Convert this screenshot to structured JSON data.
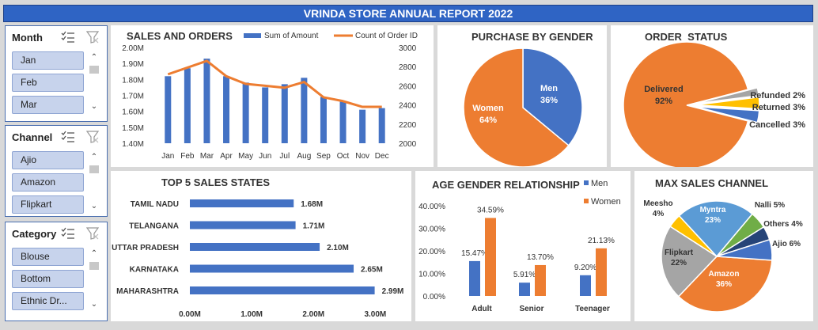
{
  "header": {
    "title": "VRINDA STORE ANNUAL REPORT 2022"
  },
  "slicers": [
    {
      "title": "Month",
      "items": [
        "Jan",
        "Feb",
        "Mar"
      ]
    },
    {
      "title": "Channel",
      "items": [
        "Ajio",
        "Amazon",
        "Flipkart"
      ]
    },
    {
      "title": "Category",
      "items": [
        "Blouse",
        "Bottom",
        "Ethnic Dr..."
      ]
    }
  ],
  "colors": {
    "blue": "#4472c4",
    "orange": "#ed7d31",
    "gray": "#a5a5a5",
    "yellow": "#ffc000",
    "lightblue": "#5b9bd5",
    "green": "#70ad47",
    "navy": "#264478"
  },
  "chart_data": [
    {
      "type": "bar",
      "title": "SALES AND ORDERS",
      "categories": [
        "Jan",
        "Feb",
        "Mar",
        "Apr",
        "May",
        "Jun",
        "Jul",
        "Aug",
        "Sep",
        "Oct",
        "Nov",
        "Dec"
      ],
      "series": [
        {
          "name": "Sum of Amount",
          "values": [
            1.82,
            1.87,
            1.93,
            1.82,
            1.78,
            1.75,
            1.77,
            1.81,
            1.69,
            1.66,
            1.61,
            1.62
          ]
        },
        {
          "name": "Count of Order ID",
          "values": [
            2720,
            2790,
            2860,
            2700,
            2620,
            2600,
            2580,
            2640,
            2480,
            2440,
            2380,
            2380
          ]
        }
      ],
      "y_ticks": [
        "2.00M",
        "1.90M",
        "1.80M",
        "1.70M",
        "1.60M",
        "1.50M",
        "1.40M"
      ],
      "y2_ticks": [
        "3000",
        "2800",
        "2600",
        "2400",
        "2200",
        "2000"
      ],
      "ylim": [
        1.4,
        2.0
      ],
      "y2lim": [
        2000,
        3000
      ]
    },
    {
      "type": "pie",
      "title": "PURCHASE BY GENDER",
      "slices": [
        {
          "label": "Men",
          "pct": "36%",
          "value": 36
        },
        {
          "label": "Women",
          "pct": "64%",
          "value": 64
        }
      ]
    },
    {
      "type": "pie",
      "title": "ORDER  STATUS",
      "slices": [
        {
          "label": "Delivered",
          "pct": "92%",
          "value": 92
        },
        {
          "label": "Refunded",
          "pct": "2%",
          "value": 2
        },
        {
          "label": "Returned",
          "pct": "3%",
          "value": 3
        },
        {
          "label": "Cancelled",
          "pct": "3%",
          "value": 3
        }
      ]
    },
    {
      "type": "bar",
      "title": "TOP 5 SALES STATES",
      "categories": [
        "TAMIL NADU",
        "TELANGANA",
        "UTTAR PRADESH",
        "KARNATAKA",
        "MAHARASHTRA"
      ],
      "values": [
        1.68,
        1.71,
        2.1,
        2.65,
        2.99
      ],
      "data_labels": [
        "1.68M",
        "1.71M",
        "2.10M",
        "2.65M",
        "2.99M"
      ],
      "x_ticks": [
        "0.00M",
        "1.00M",
        "2.00M",
        "3.00M"
      ],
      "xlim": [
        0,
        3.2
      ]
    },
    {
      "type": "bar",
      "title": "AGE GENDER RELATIONSHIP",
      "categories": [
        "Adult",
        "Senior",
        "Teenager"
      ],
      "series": [
        {
          "name": "Men",
          "values": [
            15.47,
            5.91,
            9.2
          ],
          "labels": [
            "15.47%",
            "5.91%",
            "9.20%"
          ]
        },
        {
          "name": "Women",
          "values": [
            34.59,
            13.7,
            21.13
          ],
          "labels": [
            "34.59%",
            "13.70%",
            "21.13%"
          ]
        }
      ],
      "y_ticks": [
        "40.00%",
        "30.00%",
        "20.00%",
        "10.00%",
        "0.00%"
      ],
      "ylim": [
        0,
        40
      ]
    },
    {
      "type": "pie",
      "title": "MAX SALES CHANNEL",
      "slices": [
        {
          "label": "Amazon",
          "pct": "36%",
          "value": 36
        },
        {
          "label": "Flipkart",
          "pct": "22%",
          "value": 22
        },
        {
          "label": "Meesho",
          "pct": "4%",
          "value": 4
        },
        {
          "label": "Myntra",
          "pct": "23%",
          "value": 23
        },
        {
          "label": "Nalli",
          "pct": "5%",
          "value": 5
        },
        {
          "label": "Others",
          "pct": "4%",
          "value": 4
        },
        {
          "label": "Ajio",
          "pct": "6%",
          "value": 6
        }
      ]
    }
  ]
}
